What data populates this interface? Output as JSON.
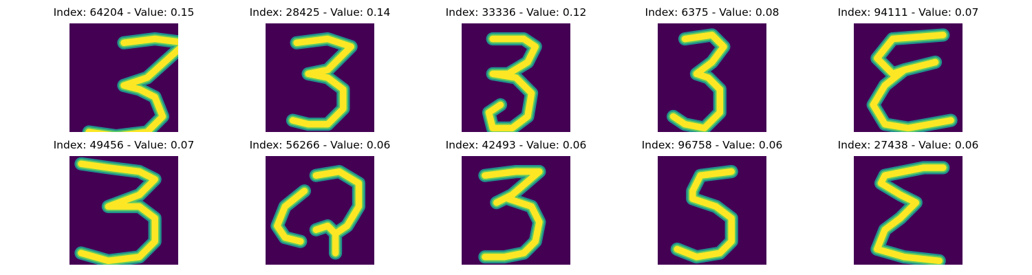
{
  "colors": {
    "background": "#440154",
    "stroke_outer": "#21918c",
    "stroke_mid": "#5ec962",
    "stroke_core": "#fde725"
  },
  "images": [
    {
      "label": "Index: 64204 - Value: 0.15",
      "digit_shape": "3"
    },
    {
      "label": "Index: 28425 - Value: 0.14",
      "digit_shape": "3"
    },
    {
      "label": "Index: 33336 - Value: 0.12",
      "digit_shape": "3"
    },
    {
      "label": "Index: 6375 - Value: 0.08",
      "digit_shape": "3"
    },
    {
      "label": "Index: 94111 - Value: 0.07",
      "digit_shape": "epsilon"
    },
    {
      "label": "Index: 49456 - Value: 0.07",
      "digit_shape": "3"
    },
    {
      "label": "Index: 56266 - Value: 0.06",
      "digit_shape": "curled-3"
    },
    {
      "label": "Index: 42493 - Value: 0.06",
      "digit_shape": "3"
    },
    {
      "label": "Index: 96758 - Value: 0.06",
      "digit_shape": "5"
    },
    {
      "label": "Index: 27438 - Value: 0.06",
      "digit_shape": "sigma"
    }
  ]
}
